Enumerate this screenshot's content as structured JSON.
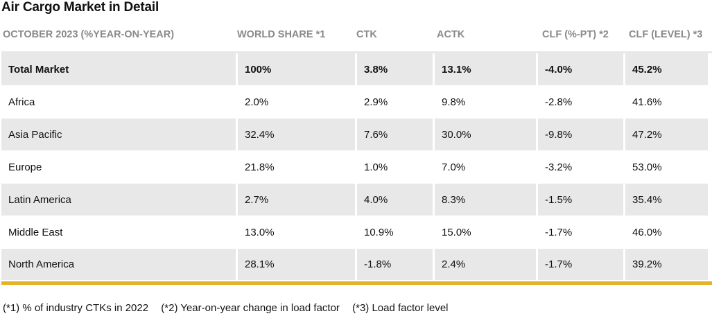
{
  "title": "Air Cargo Market in Detail",
  "headers": [
    "OCTOBER 2023 (%YEAR-ON-YEAR)",
    "WORLD SHARE *1",
    "CTK",
    "ACTK",
    "CLF (%-PT) *2",
    "CLF (LEVEL) *3"
  ],
  "rows": [
    {
      "region": "Total Market",
      "world_share": "100%",
      "ctk": "3.8%",
      "actk": "13.1%",
      "clf_pt": "-4.0%",
      "clf_level": "45.2%"
    },
    {
      "region": "Africa",
      "world_share": "2.0%",
      "ctk": "2.9%",
      "actk": "9.8%",
      "clf_pt": "-2.8%",
      "clf_level": "41.6%"
    },
    {
      "region": "Asia Pacific",
      "world_share": "32.4%",
      "ctk": "7.6%",
      "actk": "30.0%",
      "clf_pt": "-9.8%",
      "clf_level": "47.2%"
    },
    {
      "region": "Europe",
      "world_share": "21.8%",
      "ctk": "1.0%",
      "actk": "7.0%",
      "clf_pt": "-3.2%",
      "clf_level": "53.0%"
    },
    {
      "region": "Latin America",
      "world_share": "2.7%",
      "ctk": "4.0%",
      "actk": "8.3%",
      "clf_pt": "-1.5%",
      "clf_level": "35.4%"
    },
    {
      "region": "Middle East",
      "world_share": "13.0%",
      "ctk": "10.9%",
      "actk": "15.0%",
      "clf_pt": "-1.7%",
      "clf_level": "46.0%"
    },
    {
      "region": "North America",
      "world_share": "28.1%",
      "ctk": "-1.8%",
      "actk": "2.4%",
      "clf_pt": "-1.7%",
      "clf_level": "39.2%"
    }
  ],
  "footnotes": [
    "(*1) % of industry CTKs in 2022",
    "(*2) Year-on-year change in load factor",
    "(*3) Load factor level"
  ],
  "colors": {
    "row_shade": "#e8e8e8",
    "header_text": "#8a8a8a",
    "accent_rule": "#e6b324"
  }
}
